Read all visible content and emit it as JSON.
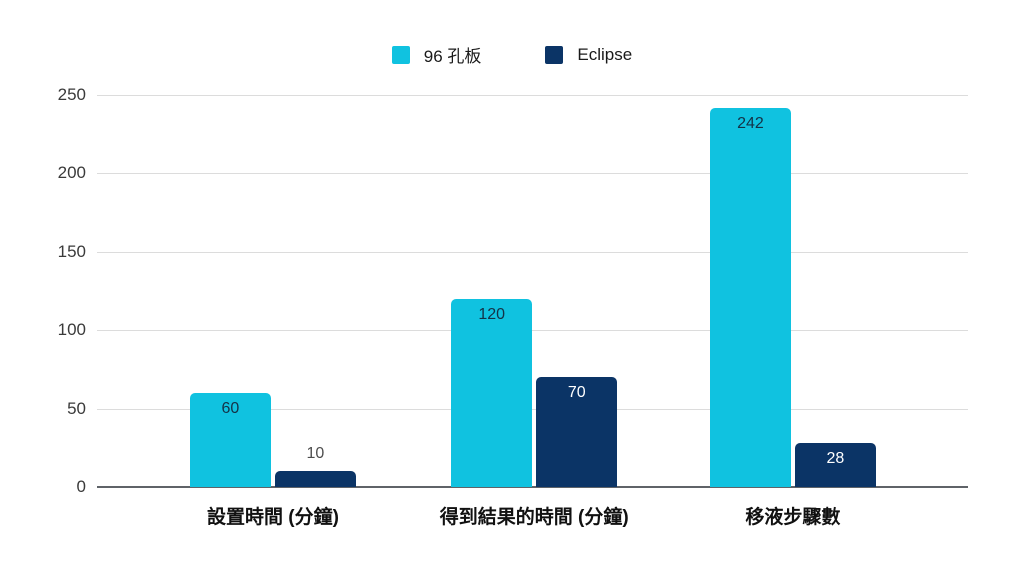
{
  "chart_data": {
    "type": "bar",
    "title": "",
    "categories": [
      "設置時間 (分鐘)",
      "得到結果的時間 (分鐘)",
      "移液步驟數"
    ],
    "series": [
      {
        "name": "96 孔板",
        "color": "#10c2e0",
        "values": [
          60,
          120,
          242
        ],
        "value_label_color": "#143247"
      },
      {
        "name": "Eclipse",
        "color": "#0b3466",
        "values": [
          10,
          70,
          28
        ],
        "value_label_color": "#ffffff"
      }
    ],
    "xlabel": "",
    "ylabel": "",
    "ylim": [
      0,
      250
    ],
    "yticks": [
      0,
      50,
      100,
      150,
      200,
      250
    ],
    "grid": true,
    "legend_position": "top",
    "colors": {
      "gridline": "#dcdcdc",
      "baseline": "#5f6368",
      "tick_label": "#3a3a3a",
      "outside_value_label": "#4d4d4d",
      "category_label": "#111111",
      "background": "#ffffff"
    }
  }
}
